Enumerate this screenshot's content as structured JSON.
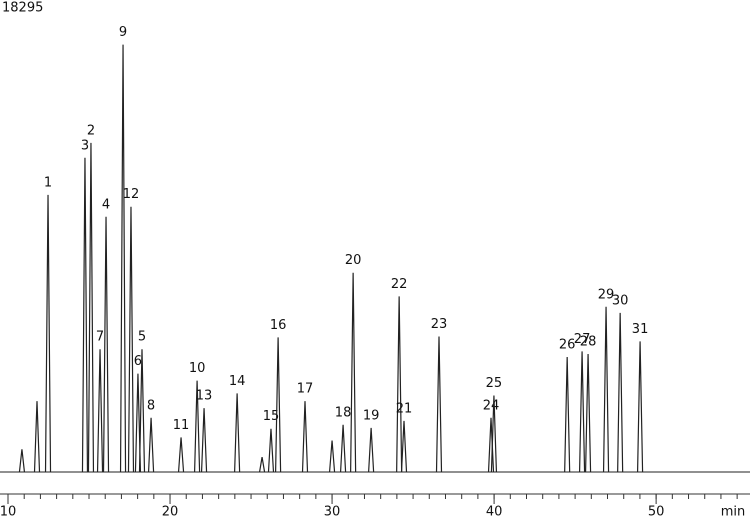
{
  "chart_data": {
    "type": "chromatogram",
    "title": "18295",
    "x_label": "min",
    "xlim": [
      10,
      55.3
    ],
    "xticks": [
      10,
      20,
      30,
      40,
      50
    ],
    "minor_tick_interval": 1,
    "ylim": [
      0,
      100
    ],
    "color": "#222222",
    "peaks": [
      {
        "label": null,
        "x": 10.86,
        "height": 5.2
      },
      {
        "label": null,
        "x": 11.79,
        "height": 16.2
      },
      {
        "label": "1",
        "x": 12.47,
        "height": 63.4
      },
      {
        "label": "3",
        "x": 14.75,
        "height": 71.9
      },
      {
        "label": "2",
        "x": 15.12,
        "height": 75.3
      },
      {
        "label": "7",
        "x": 15.68,
        "height": 28.1
      },
      {
        "label": "4",
        "x": 16.05,
        "height": 58.4
      },
      {
        "label": "9",
        "x": 17.1,
        "height": 97.8
      },
      {
        "label": "12",
        "x": 17.59,
        "height": 60.7
      },
      {
        "label": "6",
        "x": 18.02,
        "height": 22.5
      },
      {
        "label": "5",
        "x": 18.27,
        "height": 28.1
      },
      {
        "label": "8",
        "x": 18.83,
        "height": 12.4
      },
      {
        "label": "11",
        "x": 20.68,
        "height": 7.9
      },
      {
        "label": "10",
        "x": 21.67,
        "height": 20.9
      },
      {
        "label": "13",
        "x": 22.1,
        "height": 14.6
      },
      {
        "label": "14",
        "x": 24.14,
        "height": 18.0
      },
      {
        "label": null,
        "x": 25.68,
        "height": 3.4
      },
      {
        "label": "15",
        "x": 26.23,
        "height": 9.9
      },
      {
        "label": "16",
        "x": 26.67,
        "height": 30.8
      },
      {
        "label": "17",
        "x": 28.33,
        "height": 16.2
      },
      {
        "label": null,
        "x": 30.0,
        "height": 7.2
      },
      {
        "label": "18",
        "x": 30.68,
        "height": 10.8
      },
      {
        "label": "20",
        "x": 31.3,
        "height": 45.6
      },
      {
        "label": "19",
        "x": 32.41,
        "height": 10.1
      },
      {
        "label": "22",
        "x": 34.14,
        "height": 40.2
      },
      {
        "label": "21",
        "x": 34.44,
        "height": 11.7
      },
      {
        "label": "23",
        "x": 36.6,
        "height": 31.0
      },
      {
        "label": "24",
        "x": 39.81,
        "height": 12.4
      },
      {
        "label": "25",
        "x": 39.99,
        "height": 17.5
      },
      {
        "label": "26",
        "x": 44.51,
        "height": 26.3
      },
      {
        "label": "27",
        "x": 45.43,
        "height": 27.6
      },
      {
        "label": "28",
        "x": 45.8,
        "height": 27.0
      },
      {
        "label": "29",
        "x": 46.91,
        "height": 37.8
      },
      {
        "label": "30",
        "x": 47.78,
        "height": 36.4
      },
      {
        "label": "31",
        "x": 49.01,
        "height": 29.9
      }
    ]
  }
}
